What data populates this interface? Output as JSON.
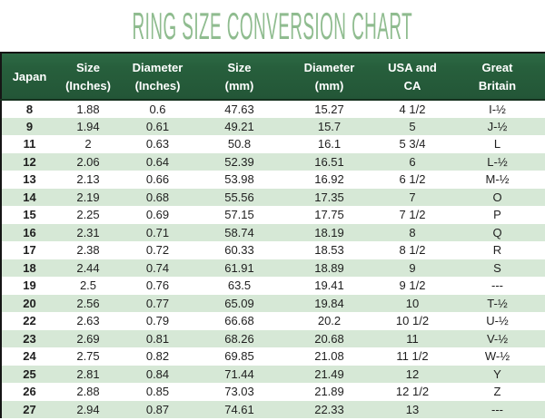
{
  "title": "RING SIZE CONVERSION CHART",
  "colors": {
    "title_green": "#8fbc8f",
    "header_green": "#275f3c",
    "stripe_green": "#d6e8d6",
    "header_text": "#ffffff",
    "body_text": "#1f1f1f",
    "border_black": "#151515"
  },
  "table": {
    "header": [
      {
        "line1": "Japan",
        "line2": ""
      },
      {
        "line1": "Size",
        "line2": "(Inches)"
      },
      {
        "line1": "Diameter",
        "line2": "(Inches)"
      },
      {
        "line1": "Size",
        "line2": "(mm)"
      },
      {
        "line1": "Diameter",
        "line2": "(mm)"
      },
      {
        "line1": "USA and",
        "line2": "CA"
      },
      {
        "line1": "Great",
        "line2": "Britain"
      }
    ]
  },
  "chart_data": {
    "type": "table",
    "title": "RING SIZE CONVERSION CHART",
    "columns": [
      "Japan",
      "Size (Inches)",
      "Diameter (Inches)",
      "Size (mm)",
      "Diameter (mm)",
      "USA and CA",
      "Great Britain"
    ],
    "rows": [
      [
        "8",
        "1.88",
        "0.6",
        "47.63",
        "15.27",
        "4 1/2",
        "I-½"
      ],
      [
        "9",
        "1.94",
        "0.61",
        "49.21",
        "15.7",
        "5",
        "J-½"
      ],
      [
        "11",
        "2",
        "0.63",
        "50.8",
        "16.1",
        "5 3/4",
        "L"
      ],
      [
        "12",
        "2.06",
        "0.64",
        "52.39",
        "16.51",
        "6",
        "L-½"
      ],
      [
        "13",
        "2.13",
        "0.66",
        "53.98",
        "16.92",
        "6 1/2",
        "M-½"
      ],
      [
        "14",
        "2.19",
        "0.68",
        "55.56",
        "17.35",
        "7",
        "O"
      ],
      [
        "15",
        "2.25",
        "0.69",
        "57.15",
        "17.75",
        "7 1/2",
        "P"
      ],
      [
        "16",
        "2.31",
        "0.71",
        "58.74",
        "18.19",
        "8",
        "Q"
      ],
      [
        "17",
        "2.38",
        "0.72",
        "60.33",
        "18.53",
        "8 1/2",
        "R"
      ],
      [
        "18",
        "2.44",
        "0.74",
        "61.91",
        "18.89",
        "9",
        "S"
      ],
      [
        "19",
        "2.5",
        "0.76",
        "63.5",
        "19.41",
        "9 1/2",
        "---"
      ],
      [
        "20",
        "2.56",
        "0.77",
        "65.09",
        "19.84",
        "10",
        "T-½"
      ],
      [
        "22",
        "2.63",
        "0.79",
        "66.68",
        "20.2",
        "10 1/2",
        "U-½"
      ],
      [
        "23",
        "2.69",
        "0.81",
        "68.26",
        "20.68",
        "11",
        "V-½"
      ],
      [
        "24",
        "2.75",
        "0.82",
        "69.85",
        "21.08",
        "11 1/2",
        "W-½"
      ],
      [
        "25",
        "2.81",
        "0.84",
        "71.44",
        "21.49",
        "12",
        "Y"
      ],
      [
        "26",
        "2.88",
        "0.85",
        "73.03",
        "21.89",
        "12 1/2",
        "Z"
      ],
      [
        "27",
        "2.94",
        "0.87",
        "74.61",
        "22.33",
        "13",
        "---"
      ]
    ]
  }
}
